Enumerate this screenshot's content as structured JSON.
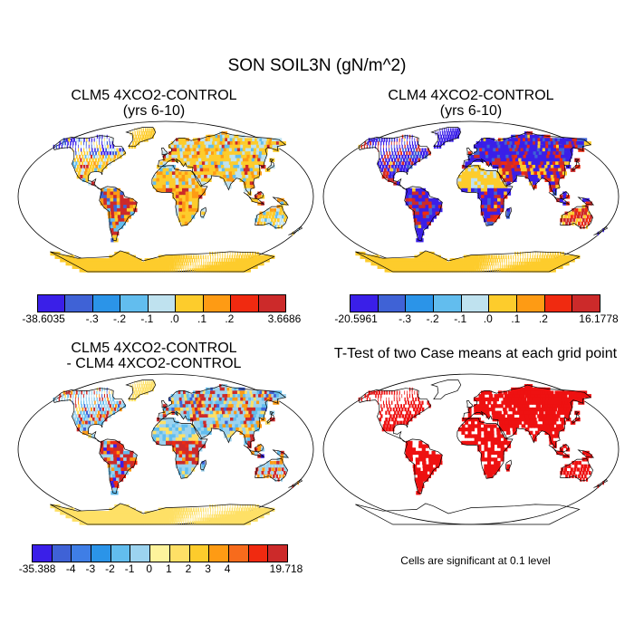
{
  "title": "SON SOIL3N (gN/m^2)",
  "panels": [
    {
      "title_line1": "CLM5 4XCO2-CONTROL",
      "title_line2": "(yrs 6-10)"
    },
    {
      "title_line1": "CLM4 4XCO2-CONTROL",
      "title_line2": "(yrs 6-10)"
    },
    {
      "title_line1": "CLM5 4XCO2-CONTROL",
      "title_line2": "- CLM4 4XCO2-CONTROL"
    },
    {
      "title_line1": "T-Test of two Case means at each grid point",
      "title_line2": ""
    }
  ],
  "colorbars": [
    {
      "colors": [
        "#3a1fe8",
        "#3f62d6",
        "#2b94e8",
        "#62bdee",
        "#bfe2ef",
        "#fdcc2c",
        "#fe9b14",
        "#f02a10",
        "#cc2a2a"
      ],
      "labels": [
        "-38.6035",
        "-.3",
        "-.2",
        "-.1",
        ".0",
        ".1",
        ".2",
        "3.6686"
      ]
    },
    {
      "colors": [
        "#3a1fe8",
        "#3f62d6",
        "#2b94e8",
        "#62bdee",
        "#bfe2ef",
        "#fdcc2c",
        "#fe9b14",
        "#f02a10",
        "#cc2a2a"
      ],
      "labels": [
        "-20.5961",
        "-.3",
        "-.2",
        "-.1",
        ".0",
        ".1",
        ".2",
        "16.1778"
      ]
    },
    {
      "colors": [
        "#3a1fe8",
        "#3f62d6",
        "#3f7ee6",
        "#2b94e8",
        "#62bdee",
        "#9cd3ef",
        "#fdf39c",
        "#fee066",
        "#fdcc2c",
        "#fe9b14",
        "#f76b1c",
        "#f02a10",
        "#cc2a2a"
      ],
      "labels": [
        "-35.388",
        "-4",
        "-3",
        "-2",
        "-1",
        "0",
        "1",
        "2",
        "3",
        "4",
        "19.718"
      ]
    }
  ],
  "significance_note": "Cells are significant at 0.1 level",
  "significance_color": "#ee1111"
}
